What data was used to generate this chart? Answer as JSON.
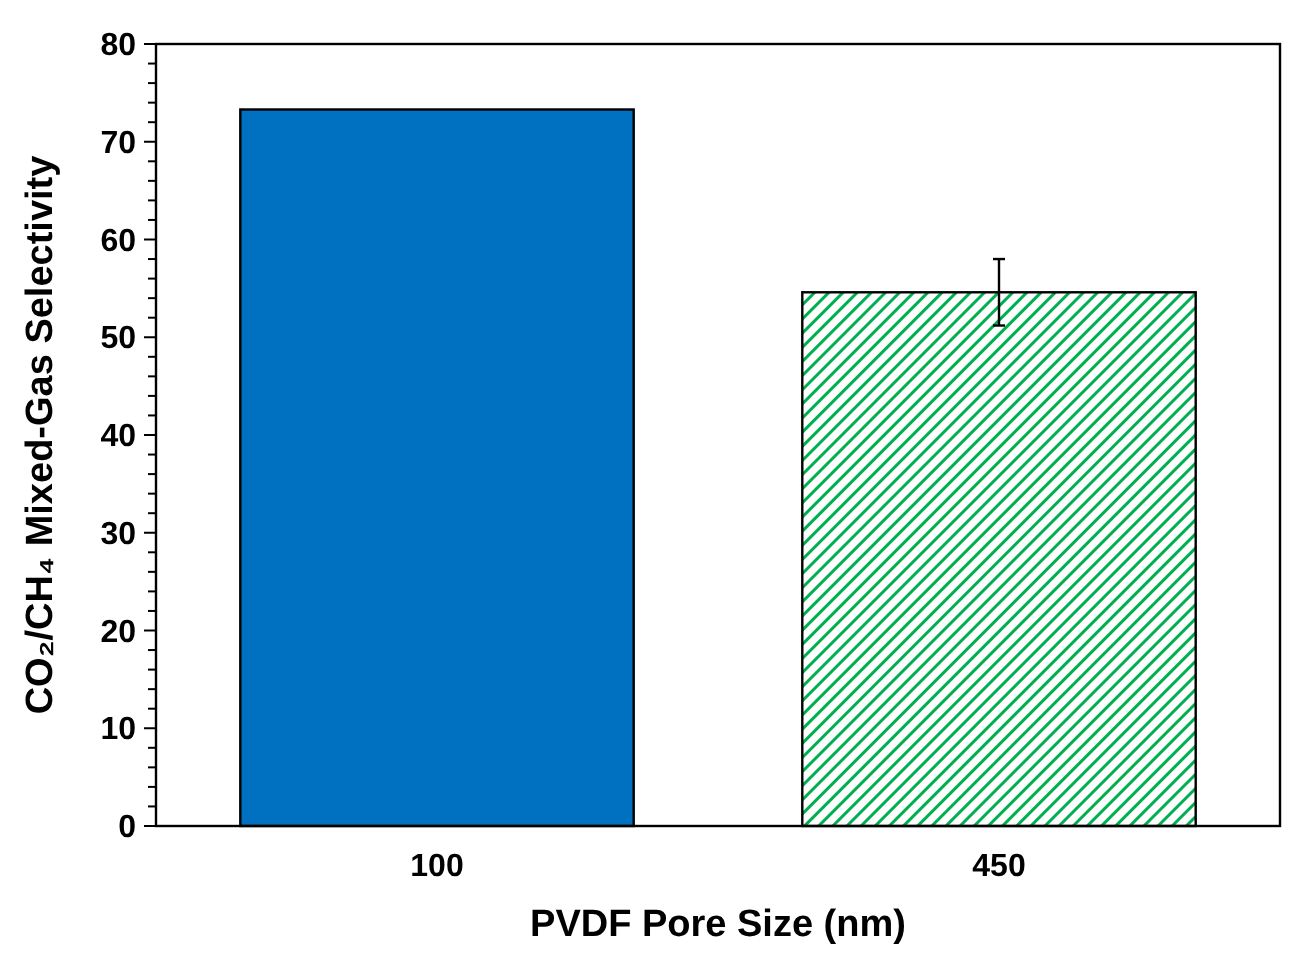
{
  "chart_data": {
    "type": "bar",
    "xlabel": "PVDF Pore Size (nm)",
    "ylabel": "CO₂/CH₄ Mixed-Gas Selectivity",
    "categories": [
      "100",
      "450"
    ],
    "values": [
      73.3,
      54.6
    ],
    "errors": [
      null,
      3.4
    ],
    "colors": [
      "#0070c0",
      "#00b050"
    ],
    "ylim": [
      0,
      80
    ],
    "yticks": [
      0,
      {
        "value": 2,
        "label": null
      },
      {
        "value": 4,
        "label": null
      },
      {
        "value": 6,
        "label": null
      },
      {
        "value": 8,
        "label": null
      },
      10,
      {
        "value": 12,
        "label": null
      },
      {
        "value": 14,
        "label": null
      },
      {
        "value": 16,
        "label": null
      },
      {
        "value": 18,
        "label": null
      },
      20,
      {
        "value": 22,
        "label": null
      },
      {
        "value": 24,
        "label": null
      },
      {
        "value": 26,
        "label": null
      },
      {
        "value": 28,
        "label": null
      },
      30,
      {
        "value": 32,
        "label": null
      },
      {
        "value": 34,
        "label": null
      },
      {
        "value": 36,
        "label": null
      },
      {
        "value": 38,
        "label": null
      },
      40,
      {
        "value": 42,
        "label": null
      },
      {
        "value": 44,
        "label": null
      },
      {
        "value": 46,
        "label": null
      },
      {
        "value": 48,
        "label": null
      },
      50,
      {
        "value": 52,
        "label": null
      },
      {
        "value": 54,
        "label": null
      },
      {
        "value": 56,
        "label": null
      },
      {
        "value": 58,
        "label": null
      },
      60,
      {
        "value": 62,
        "label": null
      },
      {
        "value": 64,
        "label": null
      },
      {
        "value": 66,
        "label": null
      },
      {
        "value": 68,
        "label": null
      },
      70,
      {
        "value": 72,
        "label": null
      },
      {
        "value": 74,
        "label": null
      },
      {
        "value": 76,
        "label": null
      },
      {
        "value": 78,
        "label": null
      },
      80
    ],
    "grid": false
  }
}
